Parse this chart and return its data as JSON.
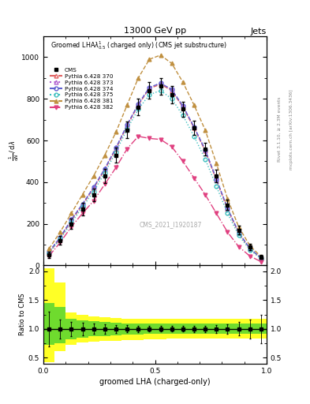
{
  "title_top": "13000 GeV pp",
  "title_right": "Jets",
  "plot_title": "Groomed LHA$\\lambda^{1}_{0.5}$ (charged only) (CMS jet substructure)",
  "xlabel": "groomed LHA (charged-only)",
  "ylabel_ratio": "Ratio to CMS",
  "watermark": "CMS_2021_I1920187",
  "rivet_text": "Rivet 3.1.10, ≥ 2.3M events",
  "mcplots_text": "mcplots.cern.ch [arXiv:1306.3436]",
  "x_bins": [
    0.0,
    0.05,
    0.1,
    0.15,
    0.2,
    0.25,
    0.3,
    0.35,
    0.4,
    0.45,
    0.5,
    0.55,
    0.6,
    0.65,
    0.7,
    0.75,
    0.8,
    0.85,
    0.9,
    0.95,
    1.0
  ],
  "cms_y": [
    50,
    120,
    200,
    270,
    340,
    430,
    530,
    650,
    760,
    840,
    860,
    820,
    750,
    660,
    560,
    430,
    290,
    170,
    90,
    40
  ],
  "cms_yerr": [
    15,
    20,
    25,
    30,
    30,
    35,
    35,
    40,
    40,
    40,
    40,
    40,
    35,
    35,
    30,
    30,
    25,
    20,
    15,
    10
  ],
  "py370_y": [
    60,
    130,
    215,
    290,
    370,
    460,
    560,
    670,
    770,
    850,
    870,
    840,
    760,
    660,
    550,
    410,
    270,
    155,
    80,
    35
  ],
  "py373_y": [
    65,
    135,
    220,
    295,
    375,
    465,
    565,
    675,
    775,
    855,
    875,
    845,
    765,
    665,
    555,
    415,
    275,
    158,
    82,
    36
  ],
  "py374_y": [
    65,
    135,
    220,
    295,
    375,
    465,
    565,
    675,
    775,
    855,
    875,
    845,
    765,
    665,
    555,
    415,
    275,
    158,
    82,
    36
  ],
  "py375_y": [
    60,
    125,
    205,
    280,
    355,
    445,
    545,
    655,
    750,
    820,
    840,
    800,
    720,
    620,
    510,
    380,
    250,
    145,
    75,
    32
  ],
  "py381_y": [
    80,
    160,
    250,
    340,
    430,
    530,
    640,
    770,
    900,
    990,
    1010,
    970,
    880,
    770,
    650,
    490,
    320,
    185,
    95,
    42
  ],
  "py382_y": [
    45,
    110,
    185,
    250,
    310,
    390,
    470,
    560,
    620,
    610,
    605,
    570,
    500,
    420,
    340,
    250,
    160,
    90,
    45,
    18
  ],
  "color_370": "#e06060",
  "color_373": "#b060d0",
  "color_374": "#6060d0",
  "color_375": "#40c0c0",
  "color_381": "#c09040",
  "color_382": "#e04080",
  "ylim_main": [
    0,
    1100
  ],
  "yticks_main": [
    0,
    200,
    400,
    600,
    800,
    1000
  ],
  "ylim_ratio": [
    0.4,
    2.1
  ],
  "yticks_ratio": [
    0.5,
    1.0,
    1.5,
    2.0
  ],
  "yellow_lo": [
    0.42,
    0.62,
    0.72,
    0.76,
    0.78,
    0.79,
    0.8,
    0.81,
    0.81,
    0.82,
    0.82,
    0.83,
    0.83,
    0.83,
    0.83,
    0.83,
    0.83,
    0.83,
    0.83,
    0.83
  ],
  "yellow_hi": [
    2.05,
    1.8,
    1.28,
    1.25,
    1.22,
    1.2,
    1.19,
    1.18,
    1.17,
    1.17,
    1.17,
    1.17,
    1.17,
    1.17,
    1.17,
    1.17,
    1.17,
    1.17,
    1.17,
    1.17
  ],
  "green_lo": [
    0.72,
    0.75,
    0.82,
    0.85,
    0.87,
    0.88,
    0.89,
    0.9,
    0.9,
    0.91,
    0.91,
    0.91,
    0.91,
    0.91,
    0.91,
    0.91,
    0.91,
    0.91,
    0.91,
    0.91
  ],
  "green_hi": [
    1.45,
    1.38,
    1.18,
    1.15,
    1.13,
    1.12,
    1.11,
    1.1,
    1.1,
    1.09,
    1.09,
    1.09,
    1.09,
    1.09,
    1.09,
    1.09,
    1.09,
    1.09,
    1.09,
    1.09
  ]
}
